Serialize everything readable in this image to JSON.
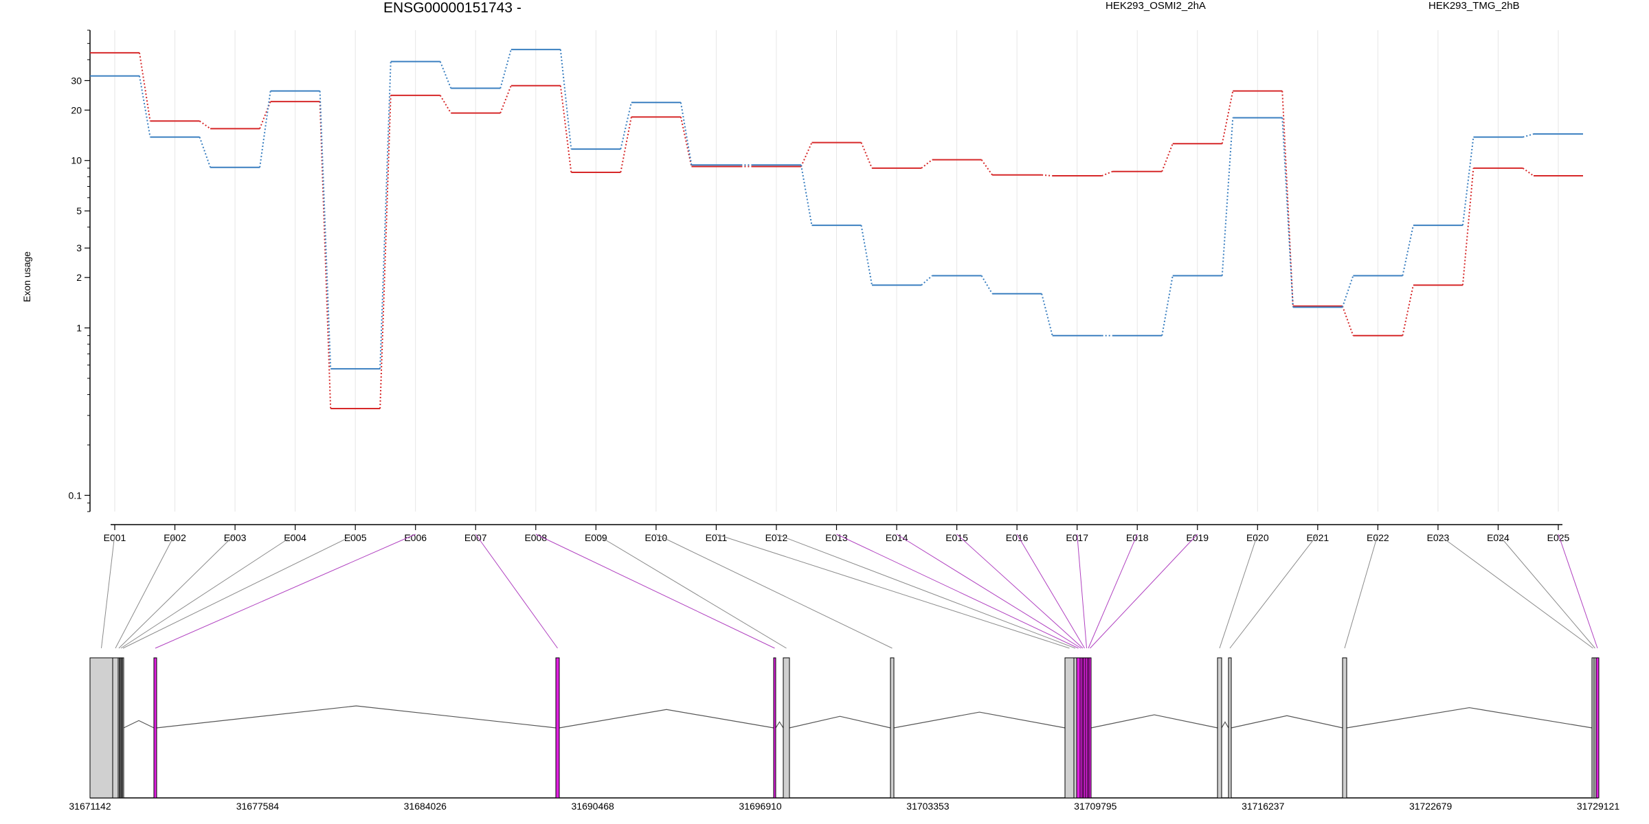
{
  "title": "ENSG00000151743 -",
  "colors": {
    "series_a": "#d62728",
    "series_b": "#3a7fc0",
    "constitutive_exon": "#d0d0d0",
    "variable_exon": "#e020e0",
    "axis": "#000000",
    "grid": "#e6e6e6",
    "link_gray": "#8a8a8a",
    "link_magenta": "#b040c0"
  },
  "chart_data": {
    "type": "line",
    "ylabel": "Exon usage",
    "yscale": "log",
    "ylim": [
      0.08,
      60
    ],
    "yticks": [
      {
        "value": 0.1,
        "label": "0.1"
      },
      {
        "value": 1,
        "label": "1"
      },
      {
        "value": 2,
        "label": "2"
      },
      {
        "value": 3,
        "label": "3"
      },
      {
        "value": 5,
        "label": "5"
      },
      {
        "value": 10,
        "label": "10"
      },
      {
        "value": 20,
        "label": "20"
      },
      {
        "value": 30,
        "label": "30"
      }
    ],
    "categories": [
      "E001",
      "E002",
      "E003",
      "E004",
      "E005",
      "E006",
      "E007",
      "E008",
      "E009",
      "E010",
      "E011",
      "E012",
      "E013",
      "E014",
      "E015",
      "E016",
      "E017",
      "E018",
      "E019",
      "E020",
      "E021",
      "E022",
      "E023",
      "E024",
      "E025"
    ],
    "series": [
      {
        "name": "HEK293_OSMI2_2hA",
        "color": "#d62728",
        "values": [
          44,
          17.2,
          15.5,
          22.5,
          0.33,
          24.5,
          19.2,
          28,
          8.5,
          18.2,
          9.2,
          9.2,
          12.8,
          9,
          10.1,
          8.2,
          8.1,
          8.6,
          12.6,
          26,
          1.35,
          0.9,
          1.8,
          9,
          8.1
        ]
      },
      {
        "name": "HEK293_TMG_2hB",
        "color": "#3a7fc0",
        "values": [
          32,
          13.8,
          9.1,
          26,
          0.57,
          39,
          27,
          46,
          11.7,
          22.2,
          9.4,
          9.4,
          4.1,
          1.8,
          2.05,
          1.6,
          0.9,
          0.9,
          2.05,
          18,
          1.33,
          2.05,
          4.1,
          13.8,
          14.4
        ]
      }
    ],
    "gene_model": {
      "coordinate_ticks": [
        "31671142",
        "31677584",
        "31684026",
        "31690468",
        "31696910",
        "31703353",
        "31709795",
        "31716237",
        "31722679",
        "31729121"
      ],
      "exon_types": [
        "constitutive",
        "constitutive",
        "constitutive",
        "constitutive",
        "constitutive",
        "variable",
        "variable",
        "variable",
        "constitutive",
        "constitutive",
        "constitutive",
        "constitutive",
        "variable",
        "variable",
        "variable",
        "variable",
        "variable",
        "variable",
        "variable",
        "constitutive",
        "constitutive",
        "constitutive",
        "constitutive",
        "constitutive",
        "variable"
      ]
    }
  }
}
